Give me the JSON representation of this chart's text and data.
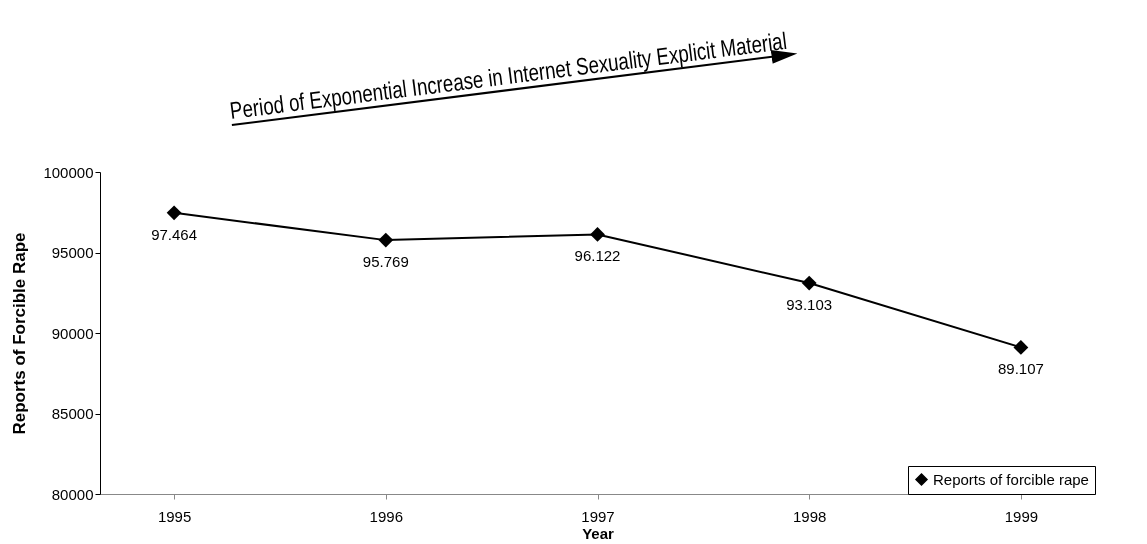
{
  "chart_data": {
    "type": "line",
    "xlabel": "Year",
    "ylabel": "Reports of Forcible Rape",
    "categories": [
      "1995",
      "1996",
      "1997",
      "1998",
      "1999"
    ],
    "series": [
      {
        "name": "Reports of forcible rape",
        "color": "#000000",
        "values": [
          97464,
          95769,
          96122,
          93103,
          89107
        ],
        "value_labels": [
          "97.464",
          "95.769",
          "96.122",
          "93.103",
          "89.107"
        ]
      }
    ],
    "ylim": [
      80000,
      100000
    ],
    "yticks": [
      80000,
      85000,
      90000,
      95000,
      100000
    ],
    "grid": false,
    "legend": "bottom right",
    "marker": "diamond",
    "line_style": "solid",
    "annotations": [
      "Period of Exponential Increase in Internet Sexuality Explicit Material"
    ]
  }
}
